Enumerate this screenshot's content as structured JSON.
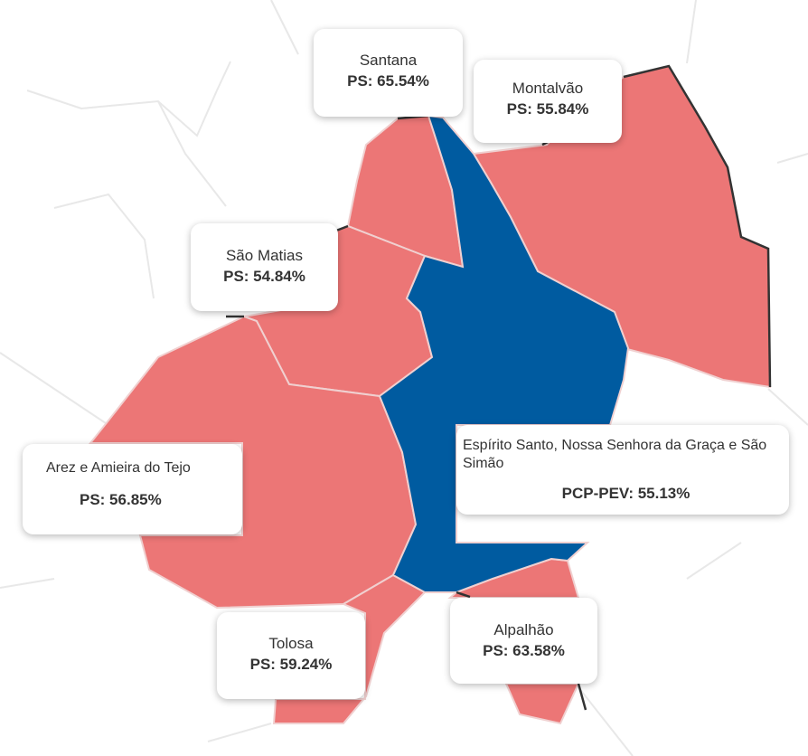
{
  "map": {
    "colors": {
      "PS": "#ec7676",
      "PCP-PEV": "#005ba0",
      "border": "#f0d0d0",
      "outer_border": "#222222",
      "background_lines": "#e6e6e6"
    }
  },
  "parishes": [
    {
      "id": "santana",
      "name": "Santana",
      "result": "PS: 65.54%",
      "party": "PS"
    },
    {
      "id": "montalvao",
      "name": "Montalvão",
      "result": "PS: 55.84%",
      "party": "PS"
    },
    {
      "id": "sao-matias",
      "name": "São Matias",
      "result": "PS: 54.84%",
      "party": "PS"
    },
    {
      "id": "arez",
      "name": "Arez e Amieira do Tejo",
      "result": "PS: 56.85%",
      "party": "PS"
    },
    {
      "id": "espirito",
      "name": "Espírito Santo, Nossa Senhora da Graça e São Simão",
      "result": "PCP-PEV: 55.13%",
      "party": "PCP-PEV"
    },
    {
      "id": "tolosa",
      "name": "Tolosa",
      "result": "PS: 59.24%",
      "party": "PS"
    },
    {
      "id": "alpalhao",
      "name": "Alpalhão",
      "result": "PS: 63.58%",
      "party": "PS"
    }
  ]
}
